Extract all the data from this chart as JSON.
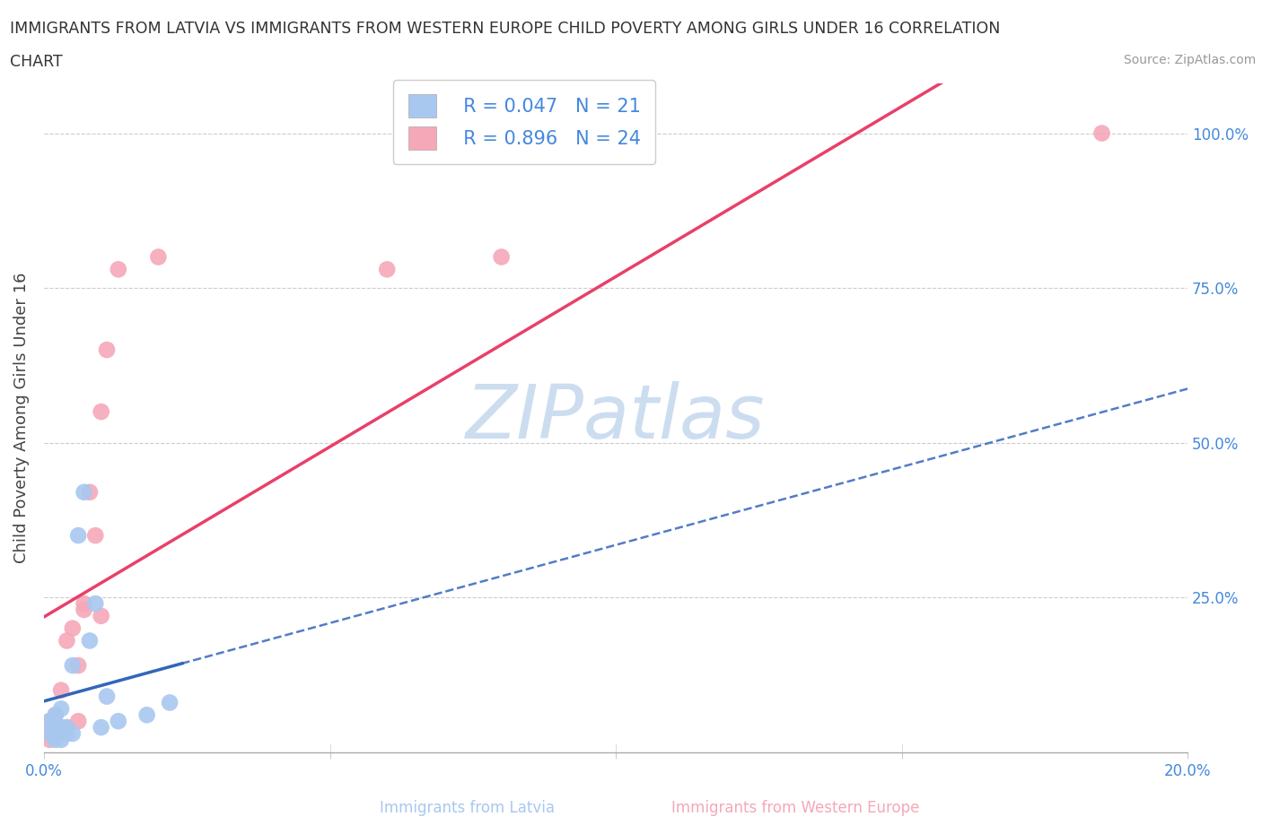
{
  "title_line1": "IMMIGRANTS FROM LATVIA VS IMMIGRANTS FROM WESTERN EUROPE CHILD POVERTY AMONG GIRLS UNDER 16 CORRELATION",
  "title_line2": "CHART",
  "source": "Source: ZipAtlas.com",
  "ylabel": "Child Poverty Among Girls Under 16",
  "background_color": "#ffffff",
  "watermark": "ZIPatlas",
  "legend": {
    "latvia_R": "R = 0.047",
    "latvia_N": "N = 21",
    "western_R": "R = 0.896",
    "western_N": "N = 24"
  },
  "xlim": [
    0.0,
    0.2
  ],
  "ylim": [
    0.0,
    1.08
  ],
  "xticks": [
    0.0,
    0.05,
    0.1,
    0.15,
    0.2
  ],
  "yticks": [
    0.0,
    0.25,
    0.5,
    0.75,
    1.0
  ],
  "ytick_labels_right": [
    "",
    "25.0%",
    "50.0%",
    "75.0%",
    "100.0%"
  ],
  "xtick_labels": [
    "0.0%",
    "",
    "",
    "",
    "20.0%"
  ],
  "latvia_color": "#a8c8f0",
  "western_color": "#f5a8b8",
  "latvia_line_color": "#3366bb",
  "western_line_color": "#e8406a",
  "latvia_x": [
    0.001,
    0.001,
    0.002,
    0.002,
    0.002,
    0.003,
    0.003,
    0.003,
    0.004,
    0.004,
    0.005,
    0.005,
    0.006,
    0.007,
    0.008,
    0.009,
    0.01,
    0.011,
    0.013,
    0.018,
    0.022
  ],
  "latvia_y": [
    0.03,
    0.05,
    0.02,
    0.04,
    0.06,
    0.02,
    0.04,
    0.07,
    0.03,
    0.04,
    0.03,
    0.14,
    0.35,
    0.42,
    0.18,
    0.24,
    0.04,
    0.09,
    0.05,
    0.06,
    0.08
  ],
  "western_x": [
    0.001,
    0.001,
    0.001,
    0.002,
    0.002,
    0.003,
    0.003,
    0.004,
    0.004,
    0.005,
    0.006,
    0.006,
    0.007,
    0.007,
    0.008,
    0.009,
    0.01,
    0.01,
    0.011,
    0.013,
    0.02,
    0.06,
    0.08,
    0.185
  ],
  "western_y": [
    0.02,
    0.03,
    0.05,
    0.04,
    0.06,
    0.03,
    0.1,
    0.04,
    0.18,
    0.2,
    0.05,
    0.14,
    0.23,
    0.24,
    0.42,
    0.35,
    0.22,
    0.55,
    0.65,
    0.78,
    0.8,
    0.78,
    0.8,
    1.0
  ],
  "marker_size": 180,
  "title_fontsize": 12.5,
  "axis_label_fontsize": 13,
  "tick_fontsize": 12,
  "legend_fontsize": 15,
  "tick_color": "#4488dd",
  "label_color": "#444444",
  "grid_color": "#cccccc",
  "watermark_color": "#ccddf0",
  "bottom_label_latvia": "Immigrants from Latvia",
  "bottom_label_western": "Immigrants from Western Europe",
  "bottom_label_color_latvia": "#a8c8f0",
  "bottom_label_color_western": "#f5a8b8"
}
